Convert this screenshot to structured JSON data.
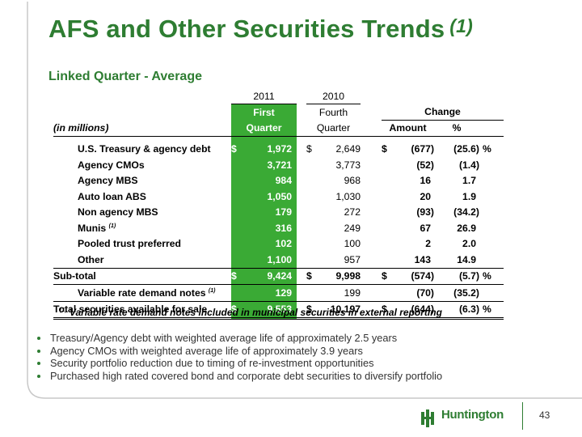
{
  "slide": {
    "title": "AFS and Other Securities Trends",
    "title_footnote": "(1)",
    "subtitle": "Linked Quarter - Average",
    "page_number": "43"
  },
  "table": {
    "header": {
      "year_2011": "2011",
      "year_2010": "2010",
      "q1_line1": "First",
      "q1_line2": "Quarter",
      "q4_line1": "Fourth",
      "q4_line2": "Quarter",
      "change": "Change",
      "amount": "Amount",
      "percent": "%",
      "units": "(in millions)"
    },
    "rows": [
      {
        "label": "U.S. Treasury & agency debt",
        "q1_sign": "$",
        "q1": "1,972",
        "q4_sign": "$",
        "q4": "2,649",
        "amt_sign": "$",
        "amount": "(677)",
        "pct": "(25.6)",
        "pct_sign": "%"
      },
      {
        "label": "Agency CMOs",
        "q1_sign": "",
        "q1": "3,721",
        "q4_sign": "",
        "q4": "3,773",
        "amt_sign": "",
        "amount": "(52)",
        "pct": "(1.4)",
        "pct_sign": ""
      },
      {
        "label": "Agency MBS",
        "q1_sign": "",
        "q1": "984",
        "q4_sign": "",
        "q4": "968",
        "amt_sign": "",
        "amount": "16",
        "pct": "1.7",
        "pct_sign": ""
      },
      {
        "label": "Auto loan ABS",
        "q1_sign": "",
        "q1": "1,050",
        "q4_sign": "",
        "q4": "1,030",
        "amt_sign": "",
        "amount": "20",
        "pct": "1.9",
        "pct_sign": ""
      },
      {
        "label": "Non agency MBS",
        "q1_sign": "",
        "q1": "179",
        "q4_sign": "",
        "q4": "272",
        "amt_sign": "",
        "amount": "(93)",
        "pct": "(34.2)",
        "pct_sign": ""
      },
      {
        "label": "Munis",
        "label_sup": "(1)",
        "q1_sign": "",
        "q1": "316",
        "q4_sign": "",
        "q4": "249",
        "amt_sign": "",
        "amount": "67",
        "pct": "26.9",
        "pct_sign": ""
      },
      {
        "label": "Pooled trust preferred",
        "q1_sign": "",
        "q1": "102",
        "q4_sign": "",
        "q4": "100",
        "amt_sign": "",
        "amount": "2",
        "pct": "2.0",
        "pct_sign": ""
      },
      {
        "label": "Other",
        "q1_sign": "",
        "q1": "1,100",
        "q4_sign": "",
        "q4": "957",
        "amt_sign": "",
        "amount": "143",
        "pct": "14.9",
        "pct_sign": ""
      }
    ],
    "subtotal": {
      "label": "Sub-total",
      "q1_sign": "$",
      "q1": "9,424",
      "q4_sign": "$",
      "q4": "9,998",
      "amt_sign": "$",
      "amount": "(574)",
      "pct": "(5.7)",
      "pct_sign": "%"
    },
    "vrdn": {
      "label": "Variable rate demand notes",
      "label_sup": "(1)",
      "q1": "129",
      "q4": "199",
      "amount": "(70)",
      "pct": "(35.2)"
    },
    "total": {
      "label": "Total securities available for sale",
      "q1_sign": "$",
      "q1": "9,553",
      "q4_sign": "$",
      "q4": "10,197",
      "amt_sign": "$",
      "amount": "(644)",
      "pct": "(6.3)",
      "pct_sign": "%"
    }
  },
  "footnote": {
    "marker": "(1)",
    "text": "Variable rate demand notes included in municipal securities in external reporting"
  },
  "bullets": [
    "Treasury/Agency debt with weighted average life of approximately 2.5 years",
    "Agency CMOs with weighted average life of approximately 3.9 years",
    "Security portfolio reduction due to timing of re-investment opportunities",
    "Purchased high rated covered bond and corporate debt securities to diversify portfolio"
  ],
  "logo": {
    "text": "Huntington"
  },
  "colors": {
    "brand_green": "#2e7d32",
    "column_green": "#3aaa35"
  }
}
